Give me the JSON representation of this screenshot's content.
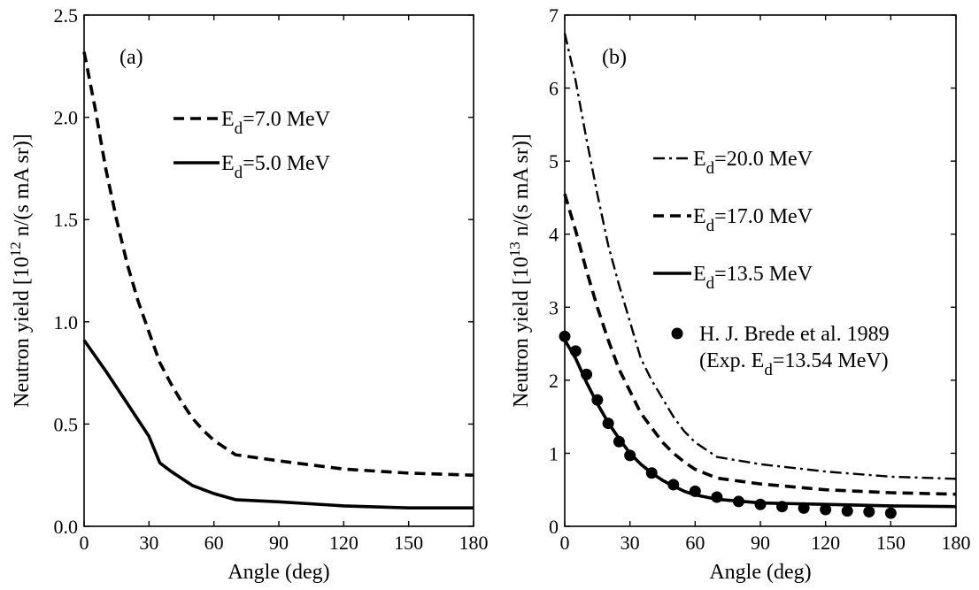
{
  "chart_data": [
    {
      "type": "line",
      "panel_label": "(a)",
      "xlabel": "Angle (deg)",
      "ylabel": {
        "pre": "Neutron yield [10",
        "sup": "12",
        "post": " n/(s mA sr)]"
      },
      "xlim": [
        0,
        180
      ],
      "ylim": [
        0,
        2.5
      ],
      "xticks": [
        0,
        30,
        60,
        90,
        120,
        150,
        180
      ],
      "yticks": [
        0,
        0.5,
        1.0,
        1.5,
        2.0,
        2.5
      ],
      "ytick_labels": [
        "0.0",
        "0.5",
        "1.0",
        "1.5",
        "2.0",
        "2.5"
      ],
      "grid": false,
      "legend_position": "top-right",
      "series": [
        {
          "legend": {
            "pre": "E",
            "sub": "d",
            "post": "=7.0 MeV"
          },
          "style": "dashed",
          "x": [
            0,
            5,
            10,
            15,
            20,
            25,
            30,
            35,
            40,
            45,
            50,
            55,
            60,
            70,
            90,
            120,
            150,
            180
          ],
          "y": [
            2.32,
            2.05,
            1.75,
            1.5,
            1.28,
            1.1,
            0.95,
            0.8,
            0.7,
            0.61,
            0.53,
            0.47,
            0.42,
            0.35,
            0.32,
            0.28,
            0.26,
            0.25
          ]
        },
        {
          "legend": {
            "pre": "E",
            "sub": "d",
            "post": "=5.0 MeV"
          },
          "style": "solid",
          "x": [
            0,
            10,
            20,
            30,
            35,
            40,
            50,
            60,
            70,
            90,
            120,
            150,
            180
          ],
          "y": [
            0.91,
            0.76,
            0.6,
            0.44,
            0.31,
            0.27,
            0.2,
            0.16,
            0.13,
            0.12,
            0.1,
            0.09,
            0.09
          ]
        }
      ]
    },
    {
      "type": "line",
      "panel_label": "(b)",
      "xlabel": "Angle (deg)",
      "ylabel": {
        "pre": "Neutron yield [10",
        "sup": "13",
        "post": " n/(s mA sr)]"
      },
      "xlim": [
        0,
        180
      ],
      "ylim": [
        0,
        7
      ],
      "xticks": [
        0,
        30,
        60,
        90,
        120,
        150,
        180
      ],
      "yticks": [
        0,
        1,
        2,
        3,
        4,
        5,
        6,
        7
      ],
      "ytick_labels": [
        "0",
        "1",
        "2",
        "3",
        "4",
        "5",
        "6",
        "7"
      ],
      "grid": false,
      "legend_position": "top-right",
      "series": [
        {
          "legend": {
            "pre": "E",
            "sub": "d",
            "post": "=20.0 MeV"
          },
          "style": "dashdot",
          "x": [
            0,
            5,
            10,
            15,
            20,
            25,
            30,
            35,
            40,
            45,
            50,
            55,
            60,
            70,
            90,
            120,
            150,
            180
          ],
          "y": [
            6.75,
            6.1,
            5.3,
            4.55,
            3.85,
            3.3,
            2.8,
            2.3,
            2.0,
            1.75,
            1.5,
            1.3,
            1.15,
            0.95,
            0.85,
            0.75,
            0.68,
            0.65
          ]
        },
        {
          "legend": {
            "pre": "E",
            "sub": "d",
            "post": "=17.0 MeV"
          },
          "style": "dashed",
          "x": [
            0,
            5,
            10,
            15,
            20,
            25,
            30,
            35,
            40,
            45,
            50,
            55,
            60,
            70,
            90,
            120,
            150,
            180
          ],
          "y": [
            4.55,
            4.05,
            3.5,
            3.0,
            2.55,
            2.15,
            1.85,
            1.55,
            1.35,
            1.15,
            1.0,
            0.88,
            0.78,
            0.66,
            0.58,
            0.5,
            0.46,
            0.44
          ]
        },
        {
          "legend": {
            "pre": "E",
            "sub": "d",
            "post": "=13.5 MeV"
          },
          "style": "solid",
          "x": [
            0,
            5,
            10,
            15,
            20,
            25,
            30,
            35,
            40,
            45,
            50,
            55,
            60,
            70,
            90,
            120,
            150,
            180
          ],
          "y": [
            2.55,
            2.3,
            1.97,
            1.68,
            1.42,
            1.2,
            1.0,
            0.85,
            0.73,
            0.63,
            0.55,
            0.48,
            0.43,
            0.37,
            0.32,
            0.3,
            0.28,
            0.27
          ]
        },
        {
          "legend_lines": [
            "H. J. Brede et al. 1989",
            {
              "pre": "(Exp. E",
              "sub": "d",
              "post": "=13.54 MeV)"
            }
          ],
          "style": "markers",
          "x": [
            0,
            5,
            10,
            15,
            20,
            25,
            30,
            40,
            50,
            60,
            70,
            80,
            90,
            100,
            110,
            120,
            130,
            140,
            150
          ],
          "y": [
            2.6,
            2.4,
            2.08,
            1.73,
            1.41,
            1.16,
            0.97,
            0.73,
            0.57,
            0.48,
            0.4,
            0.34,
            0.3,
            0.27,
            0.25,
            0.23,
            0.21,
            0.2,
            0.18
          ]
        }
      ]
    }
  ]
}
